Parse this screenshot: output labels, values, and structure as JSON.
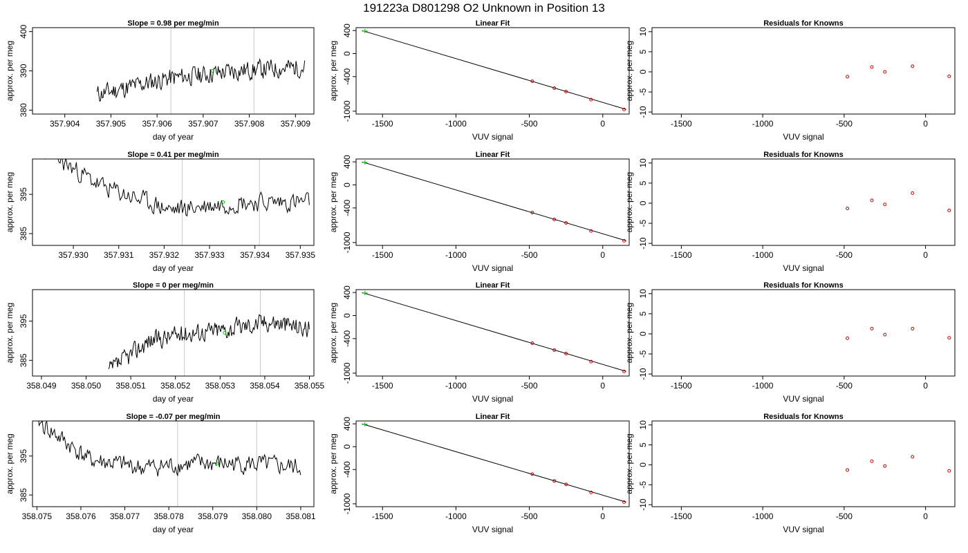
{
  "figure_title": "191223a     D801298    O2 Unknown in Position  13",
  "chart_data": [
    {
      "type": "line",
      "title": "Slope =  0.98  per meg/min",
      "xlabel": "day of year",
      "ylabel": "approx. per meg",
      "xlim": [
        357.9033,
        357.9094
      ],
      "ylim": [
        379,
        401
      ],
      "xticks": [
        "357.904",
        "357.905",
        "357.906",
        "357.907",
        "357.908",
        "357.909"
      ],
      "yticks": [
        "380",
        "390",
        "400"
      ],
      "x_start": 357.9047,
      "x_end": 357.9092,
      "level": [
        384,
        388,
        390,
        391
      ],
      "markers_x": [
        357.9063,
        357.9081
      ],
      "point": {
        "x": 357.9072,
        "y": 390
      },
      "seed": 11
    },
    {
      "type": "line",
      "title": "Linear Fit",
      "xlabel": "VUV signal",
      "ylabel": "approx. per meg",
      "xlim": [
        -1680,
        180
      ],
      "ylim": [
        -1050,
        450
      ],
      "xticks": [
        "-1500",
        "-1000",
        "-500",
        "0"
      ],
      "yticks": [
        "-1000",
        "-400",
        "0",
        "400"
      ],
      "line": [
        [
          -1640,
          400
        ],
        [
          160,
          -970
        ]
      ],
      "known_x": [
        -480,
        -330,
        -250,
        -80,
        145
      ],
      "known_y": [
        -480,
        -600,
        -660,
        -800,
        -970
      ],
      "unknown": {
        "x": -1620,
        "y": 390
      }
    },
    {
      "type": "scatter",
      "title": "Residuals for Knowns",
      "xlabel": "VUV signal",
      "ylabel": "approx. per meg",
      "xlim": [
        -1680,
        180
      ],
      "ylim": [
        -10.5,
        11
      ],
      "xticks": [
        "-1500",
        "-1000",
        "-500",
        "0"
      ],
      "yticks": [
        "-10",
        "-5",
        "0",
        "5",
        "10"
      ],
      "x": [
        -480,
        -330,
        -250,
        -80,
        145
      ],
      "y": [
        -1.2,
        1.2,
        0,
        1.4,
        -1.1
      ]
    },
    {
      "type": "line",
      "title": "Slope =  0.41  per meg/min",
      "xlabel": "day of year",
      "ylabel": "approx. per meg",
      "xlim": [
        357.9291,
        357.9353
      ],
      "ylim": [
        382,
        404
      ],
      "xticks": [
        "357.930",
        "357.931",
        "357.932",
        "357.933",
        "357.934",
        "357.935"
      ],
      "yticks": [
        "385",
        "395"
      ],
      "x_start": 357.9291,
      "x_end": 357.9352,
      "level": [
        408,
        397,
        391,
        393,
        393
      ],
      "markers_x": [
        357.9324,
        357.9341
      ],
      "point": {
        "x": 357.9333,
        "y": 393
      },
      "seed": 23
    },
    {
      "type": "line",
      "title": "Linear Fit",
      "xlabel": "VUV signal",
      "ylabel": "approx. per meg",
      "xlim": [
        -1680,
        180
      ],
      "ylim": [
        -1050,
        450
      ],
      "xticks": [
        "-1500",
        "-1000",
        "-500",
        "0"
      ],
      "yticks": [
        "-1000",
        "-400",
        "0",
        "400"
      ],
      "line": [
        [
          -1640,
          400
        ],
        [
          160,
          -970
        ]
      ],
      "known_x": [
        -480,
        -330,
        -250,
        -80,
        145
      ],
      "known_y": [
        -480,
        -600,
        -660,
        -800,
        -970
      ],
      "unknown": {
        "x": -1620,
        "y": 390
      }
    },
    {
      "type": "scatter",
      "title": "Residuals for Knowns",
      "xlabel": "VUV signal",
      "ylabel": "approx. per meg",
      "xlim": [
        -1680,
        180
      ],
      "ylim": [
        -10.5,
        11
      ],
      "xticks": [
        "-1500",
        "-1000",
        "-500",
        "0"
      ],
      "yticks": [
        "-10",
        "-5",
        "0",
        "5",
        "10"
      ],
      "x": [
        -480,
        -330,
        -250,
        -80,
        145
      ],
      "y": [
        -1.3,
        0.7,
        -0.3,
        2.5,
        -1.8
      ]
    },
    {
      "type": "line",
      "title": "Slope =  0  per meg/min",
      "xlabel": "day of year",
      "ylabel": "approx. per meg",
      "xlim": [
        358.0488,
        358.0551
      ],
      "ylim": [
        381,
        403
      ],
      "xticks": [
        "358.049",
        "358.050",
        "358.051",
        "358.052",
        "358.053",
        "358.054",
        "358.055"
      ],
      "yticks": [
        "385",
        "395"
      ],
      "x_start": 358.0505,
      "x_end": 358.055,
      "level": [
        382,
        390,
        392,
        393,
        395,
        393
      ],
      "markers_x": [
        358.0522,
        358.0539
      ],
      "point": {
        "x": 358.0531,
        "y": 392
      },
      "seed": 37
    },
    {
      "type": "line",
      "title": "Linear Fit",
      "xlabel": "VUV signal",
      "ylabel": "approx. per meg",
      "xlim": [
        -1680,
        180
      ],
      "ylim": [
        -1050,
        450
      ],
      "xticks": [
        "-1500",
        "-1000",
        "-500",
        "0"
      ],
      "yticks": [
        "-1000",
        "-400",
        "0",
        "400"
      ],
      "line": [
        [
          -1640,
          400
        ],
        [
          160,
          -970
        ]
      ],
      "known_x": [
        -480,
        -330,
        -250,
        -80,
        145
      ],
      "known_y": [
        -480,
        -600,
        -660,
        -800,
        -970
      ],
      "unknown": {
        "x": -1620,
        "y": 390
      }
    },
    {
      "type": "scatter",
      "title": "Residuals for Knowns",
      "xlabel": "VUV signal",
      "ylabel": "approx. per meg",
      "xlim": [
        -1680,
        180
      ],
      "ylim": [
        -10.5,
        11
      ],
      "xticks": [
        "-1500",
        "-1000",
        "-500",
        "0"
      ],
      "yticks": [
        "-10",
        "-5",
        "0",
        "5",
        "10"
      ],
      "x": [
        -480,
        -330,
        -250,
        -80,
        145
      ],
      "y": [
        -1.1,
        1.3,
        -0.2,
        1.3,
        -1.0
      ]
    },
    {
      "type": "line",
      "title": "Slope =  -0.07  per meg/min",
      "xlabel": "day of year",
      "ylabel": "approx. per meg",
      "xlim": [
        358.0749,
        358.0813
      ],
      "ylim": [
        382,
        404
      ],
      "xticks": [
        "358.075",
        "358.076",
        "358.077",
        "358.078",
        "358.079",
        "358.080",
        "358.081"
      ],
      "yticks": [
        "385",
        "395"
      ],
      "x_start": 358.075,
      "x_end": 358.081,
      "level": [
        404,
        394,
        392,
        393,
        393,
        392
      ],
      "markers_x": [
        358.0782,
        358.08
      ],
      "point": {
        "x": 358.0791,
        "y": 393
      },
      "seed": 41
    },
    {
      "type": "line",
      "title": "Linear Fit",
      "xlabel": "VUV signal",
      "ylabel": "approx. per meg",
      "xlim": [
        -1680,
        180
      ],
      "ylim": [
        -1050,
        450
      ],
      "xticks": [
        "-1500",
        "-1000",
        "-500",
        "0"
      ],
      "yticks": [
        "-1000",
        "-400",
        "0",
        "400"
      ],
      "line": [
        [
          -1640,
          400
        ],
        [
          160,
          -970
        ]
      ],
      "known_x": [
        -480,
        -330,
        -250,
        -80,
        145
      ],
      "known_y": [
        -480,
        -600,
        -660,
        -800,
        -970
      ],
      "unknown": {
        "x": -1620,
        "y": 390
      }
    },
    {
      "type": "scatter",
      "title": "Residuals for Knowns",
      "xlabel": "VUV signal",
      "ylabel": "approx. per meg",
      "xlim": [
        -1680,
        180
      ],
      "ylim": [
        -10.5,
        11
      ],
      "xticks": [
        "-1500",
        "-1000",
        "-500",
        "0"
      ],
      "yticks": [
        "-10",
        "-5",
        "0",
        "5",
        "10"
      ],
      "x": [
        -480,
        -330,
        -250,
        -80,
        145
      ],
      "y": [
        -1.3,
        0.9,
        -0.3,
        2.0,
        -1.5
      ]
    }
  ]
}
